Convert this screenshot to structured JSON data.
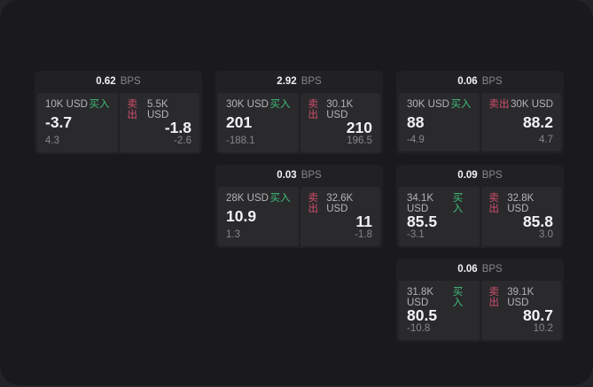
{
  "labels": {
    "bps_unit": "BPS",
    "buy": "买入",
    "sell": "卖出"
  },
  "colors": {
    "outer_bg": "#242428",
    "canvas_bg": "#1a1a1d",
    "card_bg": "#212124",
    "cell_bg": "#2a2a2d",
    "buy_green": "#40bd77",
    "sell_red": "#d34e6c",
    "text_bright": "#f2f2f4",
    "text_label": "#b4b4b8",
    "text_dim": "#87878b"
  },
  "cards": [
    {
      "bps": "0.62",
      "buy": {
        "amount": "10K USD",
        "value": "-3.7",
        "sub": "4.3"
      },
      "sell": {
        "amount": "5.5K USD",
        "value": "-1.8",
        "sub": "-2.6"
      }
    },
    {
      "bps": "2.92",
      "buy": {
        "amount": "30K USD",
        "value": "201",
        "sub": "-188.1"
      },
      "sell": {
        "amount": "30.1K USD",
        "value": "210",
        "sub": "196.5"
      }
    },
    {
      "bps": "0.06",
      "buy": {
        "amount": "30K USD",
        "value": "88",
        "sub": "-4.9"
      },
      "sell": {
        "amount": "30K USD",
        "value": "88.2",
        "sub": "4.7"
      }
    },
    {
      "bps": "0.03",
      "buy": {
        "amount": "28K USD",
        "value": "10.9",
        "sub": "1.3"
      },
      "sell": {
        "amount": "32.6K USD",
        "value": "11",
        "sub": "-1.8"
      }
    },
    {
      "bps": "0.09",
      "buy": {
        "amount": "34.1K USD",
        "value": "85.5",
        "sub": "-3.1"
      },
      "sell": {
        "amount": "32.8K USD",
        "value": "85.8",
        "sub": "3.0"
      }
    },
    {
      "bps": "0.06",
      "buy": {
        "amount": "31.8K USD",
        "value": "80.5",
        "sub": "-10.8"
      },
      "sell": {
        "amount": "39.1K USD",
        "value": "80.7",
        "sub": "10.2"
      }
    }
  ]
}
